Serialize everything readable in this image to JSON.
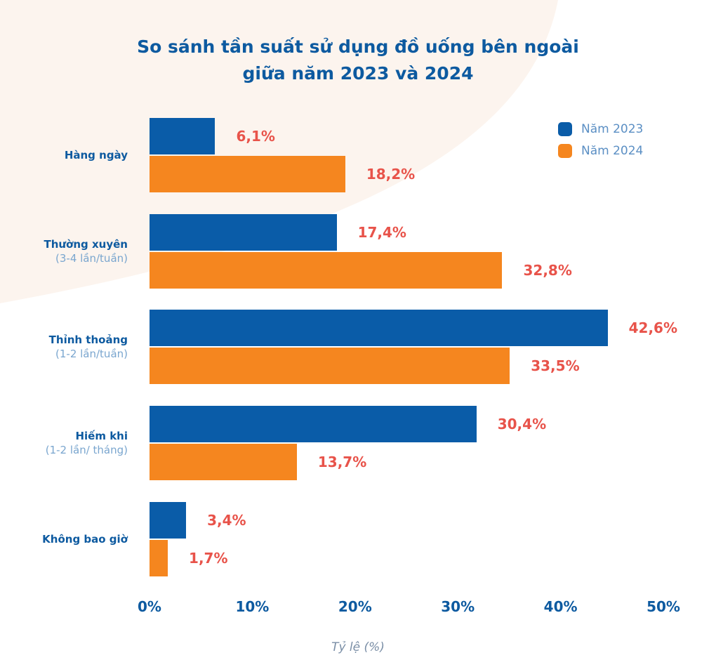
{
  "chart_data": {
    "type": "bar",
    "orientation": "horizontal",
    "title": [
      "So sánh tần suất sử dụng đồ uống bên ngoài",
      "giữa năm 2023 và 2024"
    ],
    "xlabel": "Tỷ lệ (%)",
    "ylabel": "",
    "xlim": [
      0,
      50
    ],
    "x_ticks": [
      "0%",
      "10%",
      "20%",
      "30%",
      "40%",
      "50%"
    ],
    "categories": [
      {
        "main": "Hàng ngày",
        "sub": ""
      },
      {
        "main": "Thường xuyên",
        "sub": "(3-4 lần/tuần)"
      },
      {
        "main": "Thỉnh thoảng",
        "sub": "(1-2 lần/tuần)"
      },
      {
        "main": "Hiếm khi",
        "sub": "(1-2 lần/ tháng)"
      },
      {
        "main": "Không bao giờ",
        "sub": ""
      }
    ],
    "series": [
      {
        "name": "Năm 2023",
        "color": "#0a5ca8",
        "values": [
          6.1,
          17.4,
          42.6,
          30.4,
          3.4
        ],
        "labels": [
          "6,1%",
          "17,4%",
          "42,6%",
          "30,4%",
          "3,4%"
        ]
      },
      {
        "name": "Năm 2024",
        "color": "#f5861f",
        "values": [
          18.2,
          32.8,
          33.5,
          13.7,
          1.7
        ],
        "labels": [
          "18,2%",
          "32,8%",
          "33,5%",
          "13,7%",
          "1,7%"
        ]
      }
    ],
    "legend_position": "top-right",
    "grid": false,
    "label_color": "#e8534a"
  }
}
